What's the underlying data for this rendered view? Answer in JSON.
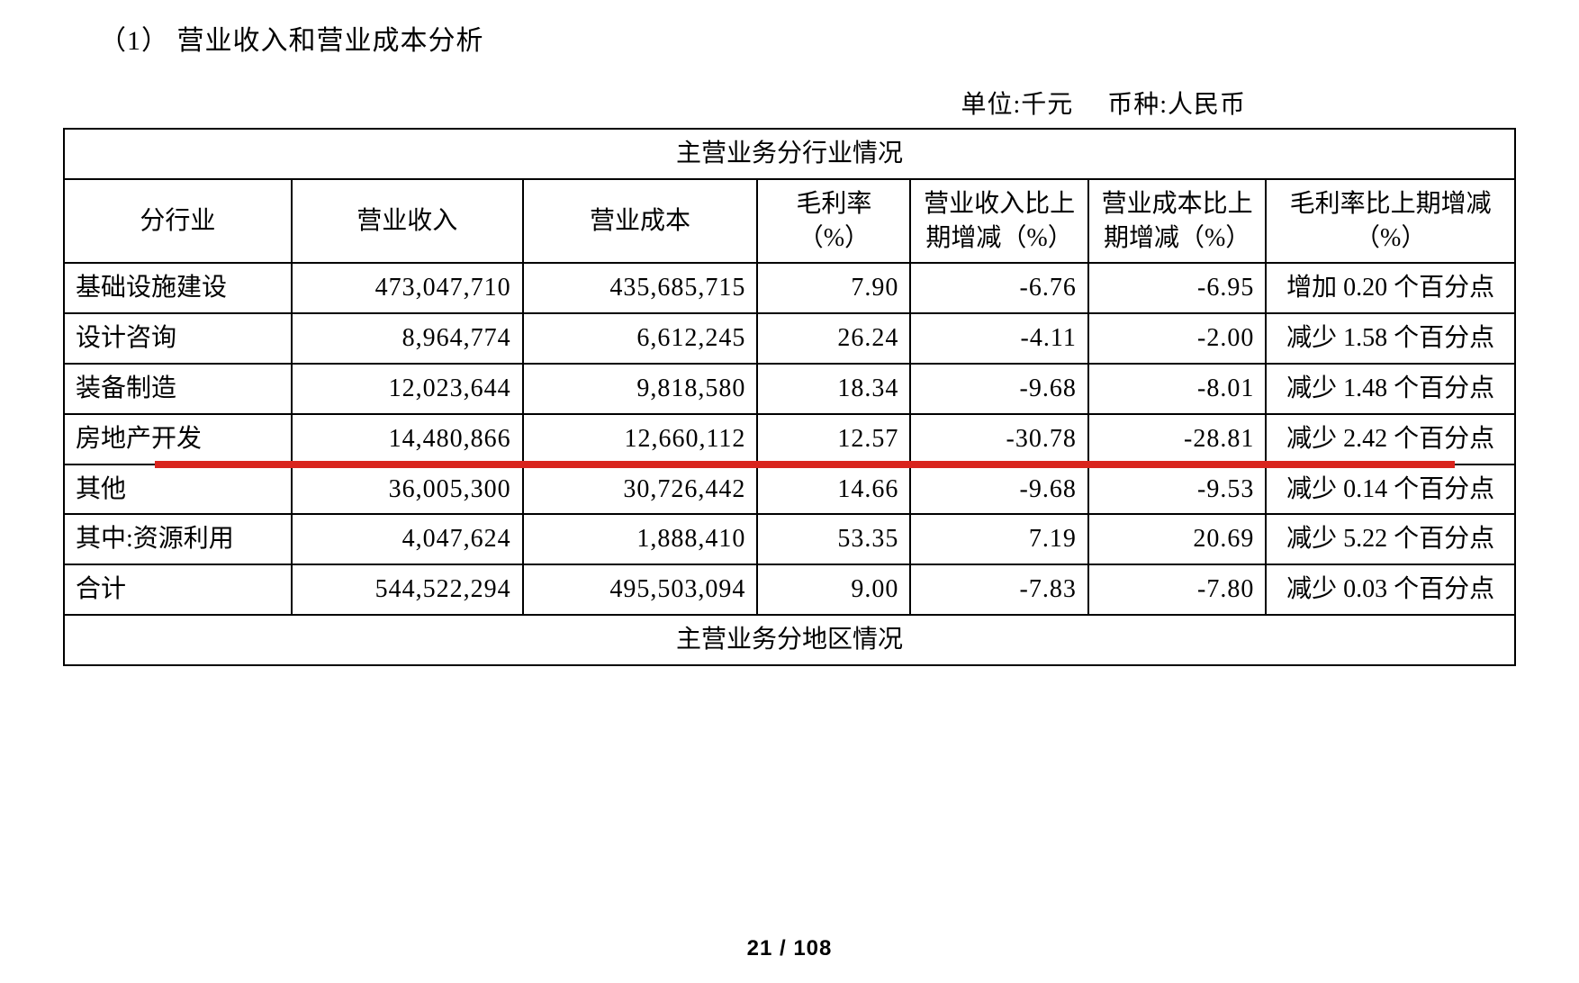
{
  "section_label": "（1） 营业收入和营业成本分析",
  "unit_label": "单位:千元",
  "currency_label": "币种:人民币",
  "table": {
    "type": "table",
    "banner_top": "主营业务分行业情况",
    "banner_bottom": "主营业务分地区情况",
    "border_color": "#000000",
    "background_color": "#ffffff",
    "highlight_color": "#d9241d",
    "highlight_after_row_index": 3,
    "font_size_pt": 21,
    "columns": [
      {
        "key": "industry",
        "label": "分行业",
        "align": "left",
        "width_pct": 12.8
      },
      {
        "key": "revenue",
        "label": "营业收入",
        "align": "right",
        "width_pct": 13.0
      },
      {
        "key": "cost",
        "label": "营业成本",
        "align": "right",
        "width_pct": 13.2
      },
      {
        "key": "margin",
        "label": "毛利率（%）",
        "align": "right",
        "width_pct": 8.6
      },
      {
        "key": "rev_delta",
        "label": "营业收入比上期增减（%）",
        "align": "right",
        "width_pct": 10.0
      },
      {
        "key": "cost_delta",
        "label": "营业成本比上期增减（%）",
        "align": "right",
        "width_pct": 10.0
      },
      {
        "key": "margin_delta",
        "label": "毛利率比上期增减（%）",
        "align": "center",
        "width_pct": 14.0
      }
    ],
    "rows": [
      {
        "industry": "基础设施建设",
        "revenue": "473,047,710",
        "cost": "435,685,715",
        "margin": "7.90",
        "rev_delta": "-6.76",
        "cost_delta": "-6.95",
        "margin_delta": "增加 0.20 个百分点",
        "indent": false
      },
      {
        "industry": "设计咨询",
        "revenue": "8,964,774",
        "cost": "6,612,245",
        "margin": "26.24",
        "rev_delta": "-4.11",
        "cost_delta": "-2.00",
        "margin_delta": "减少 1.58 个百分点",
        "indent": false
      },
      {
        "industry": "装备制造",
        "revenue": "12,023,644",
        "cost": "9,818,580",
        "margin": "18.34",
        "rev_delta": "-9.68",
        "cost_delta": "-8.01",
        "margin_delta": "减少 1.48 个百分点",
        "indent": false
      },
      {
        "industry": "房地产开发",
        "revenue": "14,480,866",
        "cost": "12,660,112",
        "margin": "12.57",
        "rev_delta": "-30.78",
        "cost_delta": "-28.81",
        "margin_delta": "减少 2.42 个百分点",
        "indent": false
      },
      {
        "industry": "其他",
        "revenue": "36,005,300",
        "cost": "30,726,442",
        "margin": "14.66",
        "rev_delta": "-9.68",
        "cost_delta": "-9.53",
        "margin_delta": "减少 0.14 个百分点",
        "indent": false
      },
      {
        "industry": "其中:资源利用",
        "revenue": "4,047,624",
        "cost": "1,888,410",
        "margin": "53.35",
        "rev_delta": "7.19",
        "cost_delta": "20.69",
        "margin_delta": "减少 5.22 个百分点",
        "indent": true
      },
      {
        "industry": "合计",
        "revenue": "544,522,294",
        "cost": "495,503,094",
        "margin": "9.00",
        "rev_delta": "-7.83",
        "cost_delta": "-7.80",
        "margin_delta": "减少 0.03 个百分点",
        "indent": false
      }
    ]
  },
  "page_number": "21 / 108"
}
